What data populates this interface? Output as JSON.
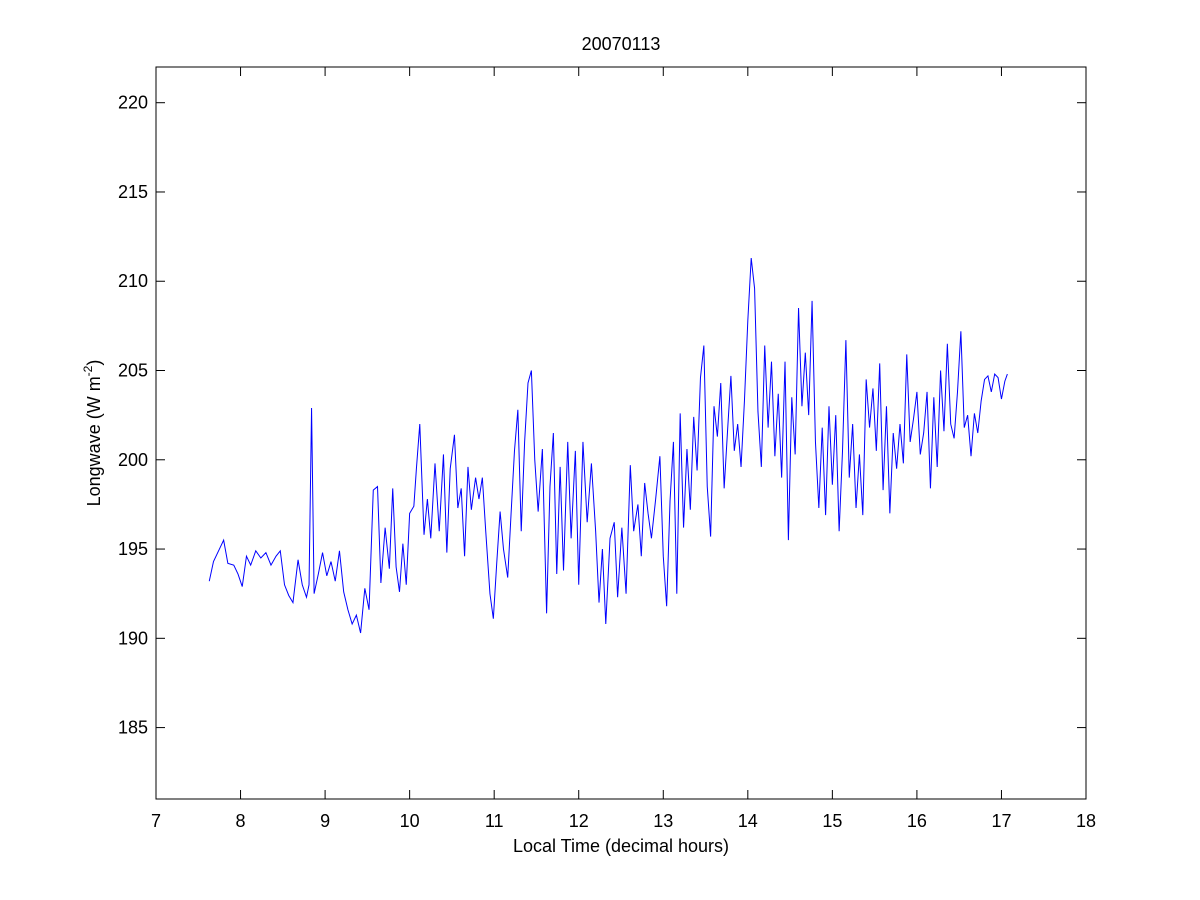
{
  "chart_data": {
    "type": "line",
    "title": "20070113",
    "x_label": "Local Time (decimal hours)",
    "y_label": [
      "Longwave (W m",
      "-2",
      ")"
    ],
    "color": "#0000ff",
    "xlim": [
      7,
      18
    ],
    "xticks": [
      7,
      8,
      9,
      10,
      11,
      12,
      13,
      14,
      15,
      16,
      17,
      18
    ],
    "ylim": [
      181,
      222
    ],
    "yticks": [
      185,
      190,
      195,
      200,
      205,
      210,
      215,
      220
    ],
    "grid": false,
    "x": [
      7.63,
      7.68,
      7.75,
      7.8,
      7.85,
      7.92,
      7.97,
      8.02,
      8.07,
      8.12,
      8.18,
      8.24,
      8.3,
      8.36,
      8.42,
      8.47,
      8.52,
      8.57,
      8.62,
      8.68,
      8.73,
      8.78,
      8.81,
      8.84,
      8.87,
      8.92,
      8.97,
      9.02,
      9.07,
      9.12,
      9.17,
      9.22,
      9.27,
      9.32,
      9.37,
      9.42,
      9.47,
      9.52,
      9.57,
      9.62,
      9.66,
      9.71,
      9.76,
      9.8,
      9.84,
      9.88,
      9.92,
      9.96,
      10.0,
      10.05,
      10.08,
      10.12,
      10.17,
      10.21,
      10.25,
      10.3,
      10.35,
      10.4,
      10.44,
      10.48,
      10.53,
      10.57,
      10.61,
      10.65,
      10.69,
      10.73,
      10.78,
      10.82,
      10.86,
      10.9,
      10.95,
      10.99,
      11.03,
      11.07,
      11.11,
      11.16,
      11.2,
      11.24,
      11.28,
      11.32,
      11.36,
      11.4,
      11.44,
      11.48,
      11.52,
      11.57,
      11.62,
      11.66,
      11.7,
      11.74,
      11.78,
      11.82,
      11.87,
      11.91,
      11.96,
      12.0,
      12.05,
      12.1,
      12.15,
      12.2,
      12.24,
      12.28,
      12.32,
      12.37,
      12.42,
      12.46,
      12.51,
      12.56,
      12.61,
      12.65,
      12.7,
      12.74,
      12.78,
      12.82,
      12.86,
      12.91,
      12.96,
      13.0,
      13.04,
      13.08,
      13.12,
      13.16,
      13.2,
      13.24,
      13.28,
      13.32,
      13.36,
      13.4,
      13.44,
      13.48,
      13.52,
      13.56,
      13.6,
      13.64,
      13.68,
      13.72,
      13.76,
      13.8,
      13.84,
      13.88,
      13.92,
      13.96,
      14.0,
      14.04,
      14.08,
      14.12,
      14.16,
      14.2,
      14.24,
      14.28,
      14.32,
      14.36,
      14.4,
      14.44,
      14.48,
      14.52,
      14.56,
      14.6,
      14.64,
      14.68,
      14.72,
      14.76,
      14.8,
      14.84,
      14.88,
      14.92,
      14.96,
      15.0,
      15.04,
      15.08,
      15.12,
      15.16,
      15.2,
      15.24,
      15.28,
      15.32,
      15.36,
      15.4,
      15.44,
      15.48,
      15.52,
      15.56,
      15.6,
      15.64,
      15.68,
      15.72,
      15.76,
      15.8,
      15.84,
      15.88,
      15.92,
      15.96,
      16.0,
      16.04,
      16.08,
      16.12,
      16.16,
      16.2,
      16.24,
      16.28,
      16.32,
      16.36,
      16.4,
      16.44,
      16.48,
      16.52,
      16.56,
      16.6,
      16.64,
      16.68,
      16.72,
      16.76,
      16.8,
      16.84,
      16.88,
      16.92,
      16.96,
      17.0,
      17.04,
      17.07
    ],
    "values": [
      193.2,
      194.3,
      195.0,
      195.5,
      194.2,
      194.1,
      193.6,
      192.9,
      194.6,
      194.1,
      194.9,
      194.5,
      194.8,
      194.1,
      194.6,
      194.9,
      193.0,
      192.4,
      192.0,
      194.4,
      193.0,
      192.3,
      193.0,
      202.9,
      192.5,
      193.6,
      194.8,
      193.5,
      194.3,
      193.2,
      194.9,
      192.6,
      191.6,
      190.8,
      191.3,
      190.3,
      192.8,
      191.6,
      198.3,
      198.5,
      193.1,
      196.2,
      193.9,
      198.4,
      194.0,
      192.6,
      195.3,
      193.0,
      197.0,
      197.4,
      199.5,
      202.0,
      195.8,
      197.8,
      195.6,
      199.8,
      196.0,
      200.3,
      194.8,
      199.5,
      201.4,
      197.3,
      198.4,
      194.6,
      199.6,
      197.2,
      199.0,
      197.8,
      199.0,
      196.0,
      192.5,
      191.1,
      194.2,
      197.1,
      195.0,
      193.4,
      197.0,
      200.5,
      202.8,
      196.0,
      201.0,
      204.3,
      205.0,
      200.0,
      197.1,
      200.6,
      191.4,
      198.5,
      201.5,
      193.6,
      199.6,
      193.8,
      201.0,
      195.6,
      200.5,
      193.0,
      201.0,
      196.5,
      199.8,
      196.0,
      192.0,
      195.0,
      190.8,
      195.6,
      196.5,
      192.3,
      196.2,
      192.5,
      199.7,
      196.0,
      197.5,
      194.6,
      198.7,
      197.0,
      195.6,
      197.8,
      200.2,
      194.6,
      191.8,
      197.7,
      201.0,
      192.5,
      202.6,
      196.2,
      200.6,
      197.2,
      202.4,
      199.4,
      204.6,
      206.4,
      198.5,
      195.7,
      203.0,
      201.3,
      204.3,
      198.4,
      201.6,
      204.7,
      200.5,
      202.0,
      199.6,
      203.3,
      207.8,
      211.3,
      209.6,
      202.7,
      199.6,
      206.4,
      201.8,
      205.5,
      200.2,
      203.7,
      199.0,
      205.5,
      195.5,
      203.5,
      200.3,
      208.5,
      203.0,
      206.0,
      202.5,
      208.9,
      201.0,
      197.3,
      201.8,
      196.9,
      203.0,
      198.6,
      202.5,
      196.0,
      200.5,
      206.7,
      199.0,
      202.0,
      197.3,
      200.3,
      196.9,
      204.5,
      201.8,
      204.0,
      200.5,
      205.4,
      198.3,
      203.0,
      197.0,
      201.5,
      199.5,
      202.0,
      199.8,
      205.9,
      201.0,
      202.3,
      203.8,
      200.3,
      201.5,
      203.8,
      198.4,
      203.5,
      199.6,
      205.0,
      201.6,
      206.5,
      202.0,
      201.2,
      203.8,
      207.2,
      201.8,
      202.5,
      200.2,
      202.6,
      201.5,
      203.3,
      204.5,
      204.7,
      203.8,
      204.8,
      204.6,
      203.4,
      204.4,
      204.8
    ]
  }
}
